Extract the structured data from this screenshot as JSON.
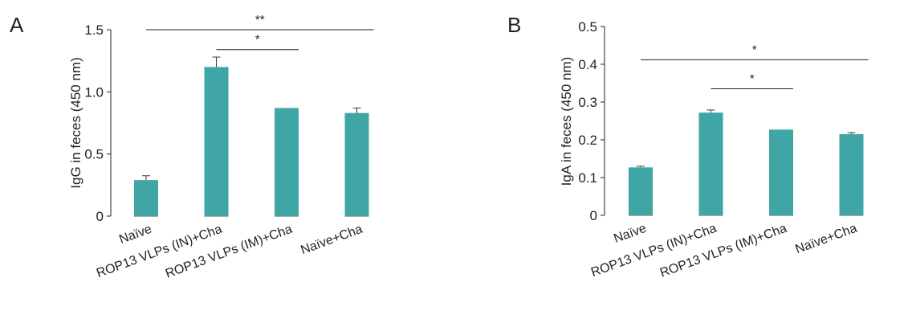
{
  "chart_data": [
    {
      "type": "bar",
      "panel": "A",
      "ylabel": "IgG in feces (450 nm)",
      "ylim": [
        0,
        1.5
      ],
      "yticks": [
        0,
        0.5,
        1.0,
        1.5
      ],
      "ytick_labels": [
        "0",
        "0.5",
        "1.0",
        "1.5"
      ],
      "categories": [
        "Naïve",
        "ROP13 VLPs (IN)+Cha",
        "ROP13 VLPs (IM)+Cha",
        "Naïve+Cha"
      ],
      "values": [
        0.29,
        1.2,
        0.87,
        0.83
      ],
      "errors": [
        0.035,
        0.08,
        0.0,
        0.04
      ],
      "color": "#3fa6a5",
      "significance": [
        {
          "from": 0,
          "to": 3,
          "label": "**",
          "y": 1.5
        },
        {
          "from": 1,
          "to": 2,
          "label": "*",
          "y": 1.34
        }
      ]
    },
    {
      "type": "bar",
      "panel": "B",
      "ylabel": "IgA in feces (450 nm)",
      "ylim": [
        0,
        0.5
      ],
      "yticks": [
        0,
        0.1,
        0.2,
        0.3,
        0.4,
        0.5
      ],
      "ytick_labels": [
        "0",
        "0.1",
        "0.2",
        "0.3",
        "0.4",
        "0.5"
      ],
      "categories": [
        "Naïve",
        "ROP13 VLPs (IN)+Cha",
        "ROP13 VLPs (IM)+Cha",
        "Naïve+Cha"
      ],
      "values": [
        0.127,
        0.272,
        0.227,
        0.215
      ],
      "errors": [
        0.003,
        0.007,
        0.0,
        0.004
      ],
      "color": "#3fa6a5",
      "significance": [
        {
          "from": 0,
          "to": 3,
          "label": "*",
          "y": 0.412
        },
        {
          "from": 1,
          "to": 2,
          "label": "*",
          "y": 0.335
        }
      ]
    }
  ]
}
